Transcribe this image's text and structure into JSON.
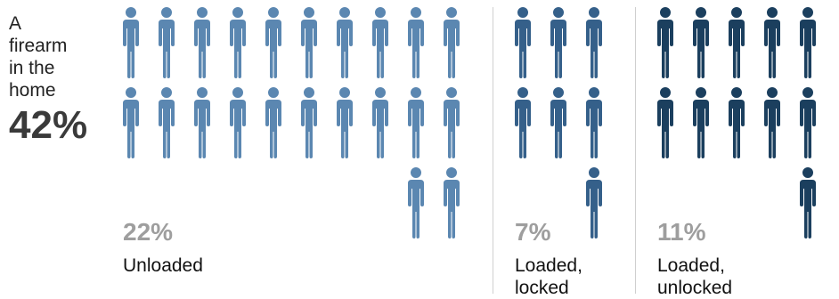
{
  "intro": {
    "label": "A firearm in the home",
    "value": "42%"
  },
  "colors": {
    "unloaded": "#5b87b1",
    "loaded_locked": "#35608a",
    "loaded_unlocked": "#1b3f5e"
  },
  "chart_data": {
    "type": "pictograph",
    "unit": "%",
    "total": {
      "label": "A firearm in the home",
      "value": 42
    },
    "groups": [
      {
        "key": "unloaded",
        "pct_label": "22%",
        "label_lines": [
          "Unloaded"
        ],
        "value": 22
      },
      {
        "key": "loaded_locked",
        "pct_label": "7%",
        "label_lines": [
          "Loaded,",
          "locked"
        ],
        "value": 7
      },
      {
        "key": "loaded_unlocked",
        "pct_label": "11%",
        "label_lines": [
          "Loaded,",
          "unlocked"
        ],
        "value": 11
      }
    ]
  }
}
